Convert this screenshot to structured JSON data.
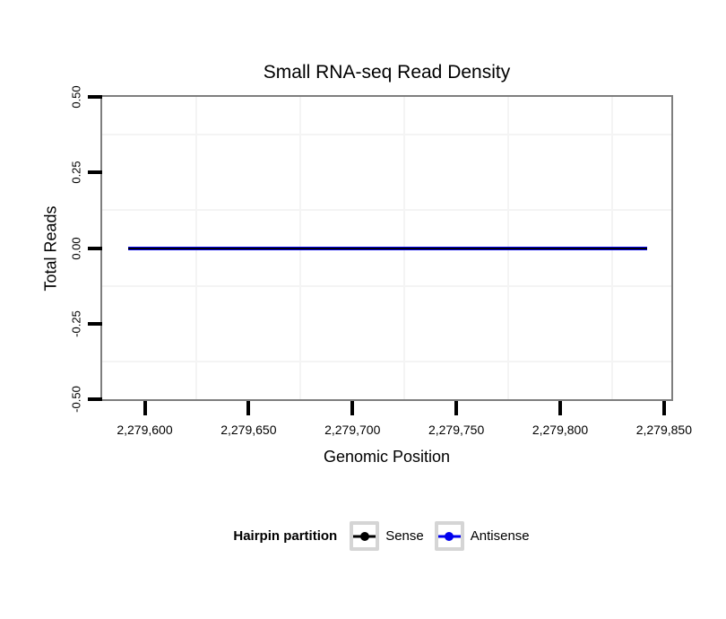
{
  "page": {
    "background": "#ffffff"
  },
  "chart_data": {
    "type": "line",
    "title": "Small RNA-seq Read Density",
    "xlabel": "Genomic Position",
    "ylabel": "Total Reads",
    "xlim": [
      2279579.5,
      2279853.5
    ],
    "ylim": [
      -0.5,
      0.5
    ],
    "x_ticks": [
      {
        "value": 2279600,
        "label": "2,279,600"
      },
      {
        "value": 2279650,
        "label": "2,279,650"
      },
      {
        "value": 2279700,
        "label": "2,279,700"
      },
      {
        "value": 2279750,
        "label": "2,279,750"
      },
      {
        "value": 2279800,
        "label": "2,279,800"
      },
      {
        "value": 2279850,
        "label": "2,279,850"
      }
    ],
    "y_ticks": [
      {
        "value": 0.5,
        "label": "0.50"
      },
      {
        "value": 0.25,
        "label": "0.25"
      },
      {
        "value": 0,
        "label": "0.00"
      },
      {
        "value": -0.25,
        "label": "-0.25"
      },
      {
        "value": -0.5,
        "label": "-0.50"
      }
    ],
    "grid": {
      "grid_on": true,
      "minor_x": [
        2279625,
        2279675,
        2279725,
        2279775,
        2279825
      ],
      "minor_y": [
        0.375,
        0.125,
        -0.125,
        -0.375
      ],
      "minor_color": "#f4f4f4",
      "major_color": "#ffffff"
    },
    "series": [
      {
        "name": "Sense",
        "color": "#000000",
        "linewidth": 2,
        "points": [
          [
            2279592,
            0
          ],
          [
            2279842,
            0
          ]
        ]
      },
      {
        "name": "Antisense",
        "color": "#0000ee",
        "linewidth": 4,
        "points": [
          [
            2279592,
            0
          ],
          [
            2279842,
            0
          ]
        ]
      }
    ],
    "legend": {
      "title": "Hairpin partition",
      "position": "bottom",
      "entries": [
        {
          "label": "Sense",
          "color": "#000000"
        },
        {
          "label": "Antisense",
          "color": "#0000ee"
        }
      ]
    },
    "colors": {
      "panel_border": "#7e7e7e",
      "tick": "#000000",
      "text": "#000000",
      "legend_key_border": "#d5d5d5",
      "legend_key_fill": "#ffffff"
    }
  }
}
